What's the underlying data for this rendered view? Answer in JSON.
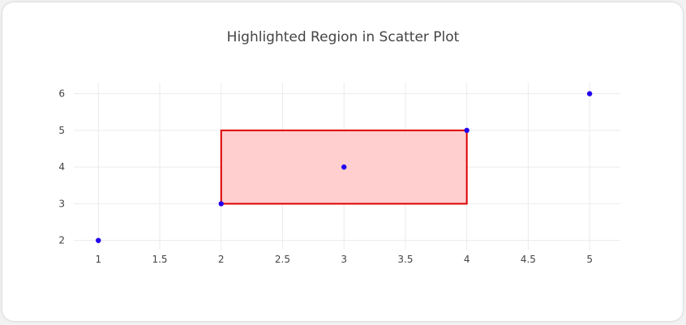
{
  "chart_data": {
    "type": "scatter",
    "title": "Highlighted Region in Scatter Plot",
    "xlabel": "",
    "ylabel": "",
    "x": [
      1,
      2,
      3,
      4,
      5
    ],
    "y": [
      2,
      3,
      4,
      5,
      6
    ],
    "xlim": [
      0.8,
      5.25
    ],
    "ylim": [
      1.75,
      6.3
    ],
    "x_ticks": [
      1,
      1.5,
      2,
      2.5,
      3,
      3.5,
      4,
      4.5,
      5
    ],
    "y_ticks": [
      2,
      3,
      4,
      5,
      6
    ],
    "grid": true,
    "highlight_region": {
      "x0": 2,
      "x1": 4,
      "y0": 3,
      "y1": 5
    },
    "colors": {
      "marker": "#2200ee",
      "region_fill": "#ffcccc",
      "region_border": "#dd0000",
      "grid": "#ebebeb"
    }
  }
}
